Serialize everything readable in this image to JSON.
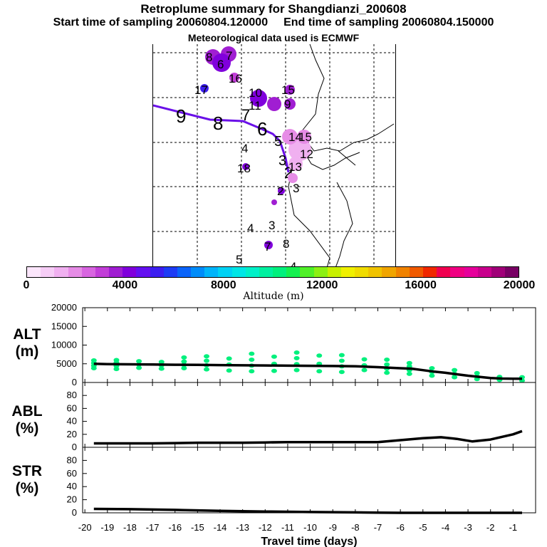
{
  "header": {
    "title": "Retroplume summary for Shangdianzi_200608",
    "start_label": "Start time of sampling 20060804.120000",
    "end_label": "End time of sampling 20060804.150000",
    "met_label": "Meteorological data used is ECMWF"
  },
  "map": {
    "altitude_series_markers": [
      {
        "label": "9"
      },
      {
        "label": "8"
      },
      {
        "label": "7"
      },
      {
        "label": "6"
      },
      {
        "label": "5"
      },
      {
        "label": "4"
      },
      {
        "label": "3"
      },
      {
        "label": "2"
      },
      {
        "label": "1"
      }
    ],
    "cluster_markers": [
      {
        "label": "8"
      },
      {
        "label": "7"
      },
      {
        "label": "6"
      },
      {
        "label": "16"
      },
      {
        "label": "17"
      },
      {
        "label": "10"
      },
      {
        "label": "11"
      },
      {
        "label": "15"
      },
      {
        "label": "9"
      },
      {
        "label": "4"
      },
      {
        "label": "18"
      },
      {
        "label": "14"
      },
      {
        "label": "15"
      },
      {
        "label": "13"
      },
      {
        "label": "12"
      },
      {
        "label": "3"
      },
      {
        "label": "2"
      },
      {
        "label": "4"
      },
      {
        "label": "3"
      },
      {
        "label": "7"
      },
      {
        "label": "8"
      },
      {
        "label": "5"
      },
      {
        "label": "4"
      }
    ]
  },
  "colorbar": {
    "title": "Altitude (m)",
    "tick_labels": [
      "0",
      "4000",
      "8000",
      "12000",
      "16000",
      "20000"
    ],
    "colors": [
      "#fbe6fb",
      "#f6cdf6",
      "#f0b0f0",
      "#e68ce6",
      "#d865e0",
      "#c23ed8",
      "#a01ed2",
      "#8000dc",
      "#6410f0",
      "#3c1ef0",
      "#1e3cf5",
      "#0a64fa",
      "#008cfa",
      "#00b4fa",
      "#00d2f5",
      "#00e6e6",
      "#00f0c8",
      "#00f0a0",
      "#00f07d",
      "#14f050",
      "#50f028",
      "#8cf014",
      "#c8f000",
      "#f0f000",
      "#f0dc00",
      "#f0c300",
      "#f0a500",
      "#f08200",
      "#f05a00",
      "#f02800",
      "#f00050",
      "#f00082",
      "#e6009b",
      "#c8008c",
      "#a00078",
      "#780064"
    ]
  },
  "panels": {
    "alt": {
      "label_line1": "ALT",
      "label_line2": "(m)"
    },
    "abl": {
      "label_line1": "ABL",
      "label_line2": "(%)"
    },
    "str": {
      "label_line1": "STR",
      "label_line2": "(%)"
    }
  },
  "xaxis": {
    "title": "Travel time (days)",
    "tick_labels": [
      "-20",
      "-19",
      "-18",
      "-17",
      "-16",
      "-15",
      "-14",
      "-13",
      "-12",
      "-11",
      "-10",
      "-9",
      "-8",
      "-7",
      "-6",
      "-5",
      "-4",
      "-3",
      "-2",
      "-1"
    ]
  },
  "chart_data": [
    {
      "type": "line",
      "name": "alt",
      "title": "ALT (m)",
      "xlabel": "Travel time (days)",
      "ylabel": "ALT (m)",
      "xlim": [
        -20.1,
        0
      ],
      "ylim": [
        0,
        20000
      ],
      "ytick_labels": [
        "0",
        "5000",
        "10000",
        "15000",
        "20000"
      ],
      "x": [
        -19.6,
        -19,
        -18,
        -17,
        -16,
        -15,
        -14,
        -13,
        -12,
        -11,
        -10,
        -9,
        -8,
        -7,
        -6,
        -5.5,
        -5,
        -4.5,
        -4,
        -3.5,
        -3,
        -2.5,
        -2,
        -1.5,
        -1,
        -0.6
      ],
      "y": [
        5000,
        4900,
        4850,
        4800,
        4750,
        4700,
        4650,
        4600,
        4550,
        4500,
        4450,
        4400,
        4350,
        4100,
        3800,
        3700,
        3300,
        2900,
        2600,
        2200,
        1800,
        1500,
        1200,
        1050,
        1000,
        1000
      ],
      "scatter_series": {
        "name": "particle altitudes",
        "color": "#00f07d",
        "x": [
          -19.6,
          -19.6,
          -19.6,
          -19.6,
          -18.6,
          -18.6,
          -18.6,
          -18.6,
          -17.6,
          -17.6,
          -17.6,
          -16.6,
          -16.6,
          -16.6,
          -15.6,
          -15.6,
          -15.6,
          -15.6,
          -14.6,
          -14.6,
          -14.6,
          -14.6,
          -13.6,
          -13.6,
          -13.6,
          -12.6,
          -12.6,
          -12.6,
          -12.6,
          -11.6,
          -11.6,
          -11.6,
          -10.6,
          -10.6,
          -10.6,
          -10.6,
          -9.6,
          -9.6,
          -9.6,
          -8.6,
          -8.6,
          -8.6,
          -8.6,
          -7.6,
          -7.6,
          -7.6,
          -6.6,
          -6.6,
          -6.6,
          -6.6,
          -5.6,
          -5.6,
          -5.6,
          -5.6,
          -4.6,
          -4.6,
          -4.6,
          -3.6,
          -3.6,
          -3.6,
          -2.6,
          -2.6,
          -2.6,
          -1.6,
          -1.6,
          -0.6,
          -0.6
        ],
        "y": [
          3800,
          4500,
          5200,
          5900,
          3600,
          4400,
          5300,
          6000,
          3900,
          4800,
          5700,
          3700,
          4600,
          5500,
          3800,
          4700,
          5600,
          6700,
          3500,
          4600,
          5800,
          7000,
          3200,
          4800,
          6400,
          3000,
          4500,
          6100,
          7700,
          3100,
          5000,
          6900,
          3300,
          4900,
          6500,
          8000,
          3000,
          5000,
          7200,
          2800,
          4300,
          5800,
          7300,
          3300,
          4600,
          6200,
          2600,
          3700,
          4800,
          6100,
          2300,
          3300,
          4300,
          5200,
          1800,
          2800,
          3800,
          1400,
          2300,
          3300,
          900,
          1600,
          2500,
          700,
          1500,
          500,
          1400
        ]
      }
    },
    {
      "type": "line",
      "name": "abl",
      "title": "ABL (%)",
      "xlabel": "Travel time (days)",
      "ylabel": "ABL (%)",
      "xlim": [
        -20.1,
        0
      ],
      "ylim": [
        0,
        100
      ],
      "ytick_labels": [
        "0",
        "20",
        "40",
        "60",
        "80"
      ],
      "x": [
        -19.6,
        -19,
        -18,
        -17,
        -16,
        -15,
        -14,
        -13,
        -12,
        -11,
        -10,
        -9,
        -8,
        -7,
        -6,
        -5,
        -4.2,
        -3.5,
        -2.8,
        -2,
        -1,
        -0.6
      ],
      "y": [
        6,
        6,
        6,
        6,
        6.5,
        7,
        7,
        7,
        7.5,
        8,
        8,
        8,
        8,
        8,
        11,
        14,
        15.5,
        13,
        9,
        12,
        20,
        25
      ]
    },
    {
      "type": "line",
      "name": "str",
      "title": "STR (%)",
      "xlabel": "Travel time (days)",
      "ylabel": "STR (%)",
      "xlim": [
        -20.1,
        0
      ],
      "ylim": [
        0,
        100
      ],
      "ytick_labels": [
        "0",
        "20",
        "40",
        "60",
        "80"
      ],
      "x": [
        -19.6,
        -18,
        -16,
        -14,
        -12,
        -10,
        -8,
        -7,
        -6,
        -4,
        -2,
        -0.6
      ],
      "y": [
        6,
        5.5,
        4.5,
        3,
        2,
        1.2,
        0.6,
        0.3,
        0,
        0,
        0,
        0
      ]
    }
  ]
}
